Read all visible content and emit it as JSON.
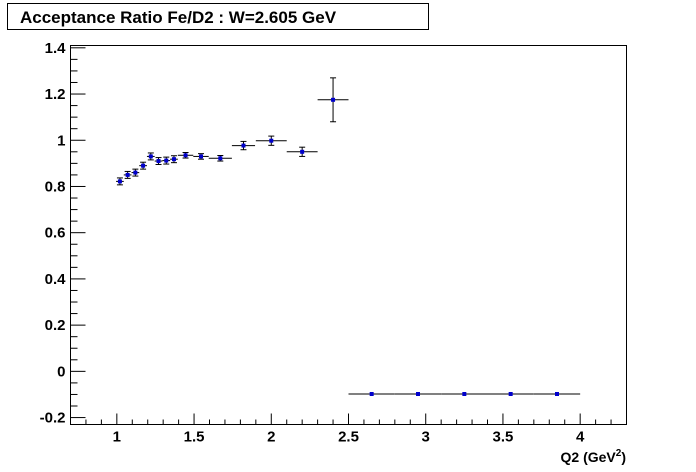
{
  "chart_data": {
    "type": "scatter",
    "title": "Acceptance Ratio Fe/D2 : W=2.605 GeV",
    "xlabel": {
      "text": "Q2 (GeV",
      "sup": "2",
      "close": ")"
    },
    "ylabel": "",
    "xlim": [
      0.7,
      4.3
    ],
    "ylim": [
      -0.23,
      1.41
    ],
    "x_ticks": [
      1,
      1.5,
      2,
      2.5,
      3,
      3.5,
      4
    ],
    "x_tick_labels": [
      "1",
      "1.5",
      "2",
      "2.5",
      "3",
      "3.5",
      "4"
    ],
    "y_ticks": [
      -0.2,
      0,
      0.2,
      0.4,
      0.6,
      0.8,
      1,
      1.2,
      1.4
    ],
    "y_tick_labels": [
      "-0.2",
      "0",
      "0.2",
      "0.4",
      "0.6",
      "0.8",
      "1",
      "1.2",
      "1.4"
    ],
    "grid": false,
    "marker_color": "#0000cc",
    "errorbar_color": "#000000",
    "points": [
      {
        "x": 1.02,
        "y": 0.822,
        "xerr": 0.025,
        "yerr": 0.015
      },
      {
        "x": 1.07,
        "y": 0.85,
        "xerr": 0.025,
        "yerr": 0.015
      },
      {
        "x": 1.12,
        "y": 0.86,
        "xerr": 0.025,
        "yerr": 0.015
      },
      {
        "x": 1.17,
        "y": 0.89,
        "xerr": 0.025,
        "yerr": 0.015
      },
      {
        "x": 1.22,
        "y": 0.93,
        "xerr": 0.025,
        "yerr": 0.015
      },
      {
        "x": 1.27,
        "y": 0.91,
        "xerr": 0.025,
        "yerr": 0.015
      },
      {
        "x": 1.32,
        "y": 0.912,
        "xerr": 0.025,
        "yerr": 0.015
      },
      {
        "x": 1.37,
        "y": 0.918,
        "xerr": 0.025,
        "yerr": 0.015
      },
      {
        "x": 1.445,
        "y": 0.935,
        "xerr": 0.05,
        "yerr": 0.012
      },
      {
        "x": 1.545,
        "y": 0.93,
        "xerr": 0.05,
        "yerr": 0.012
      },
      {
        "x": 1.67,
        "y": 0.922,
        "xerr": 0.075,
        "yerr": 0.012
      },
      {
        "x": 1.82,
        "y": 0.977,
        "xerr": 0.075,
        "yerr": 0.018
      },
      {
        "x": 2.0,
        "y": 0.998,
        "xerr": 0.1,
        "yerr": 0.02
      },
      {
        "x": 2.2,
        "y": 0.95,
        "xerr": 0.1,
        "yerr": 0.02
      },
      {
        "x": 2.4,
        "y": 1.175,
        "xerr": 0.1,
        "yerr": 0.095
      },
      {
        "x": 2.65,
        "y": -0.098,
        "xerr": 0.15,
        "yerr": 0
      },
      {
        "x": 2.95,
        "y": -0.098,
        "xerr": 0.15,
        "yerr": 0
      },
      {
        "x": 3.25,
        "y": -0.098,
        "xerr": 0.15,
        "yerr": 0
      },
      {
        "x": 3.55,
        "y": -0.098,
        "xerr": 0.15,
        "yerr": 0
      },
      {
        "x": 3.85,
        "y": -0.098,
        "xerr": 0.15,
        "yerr": 0
      }
    ]
  }
}
